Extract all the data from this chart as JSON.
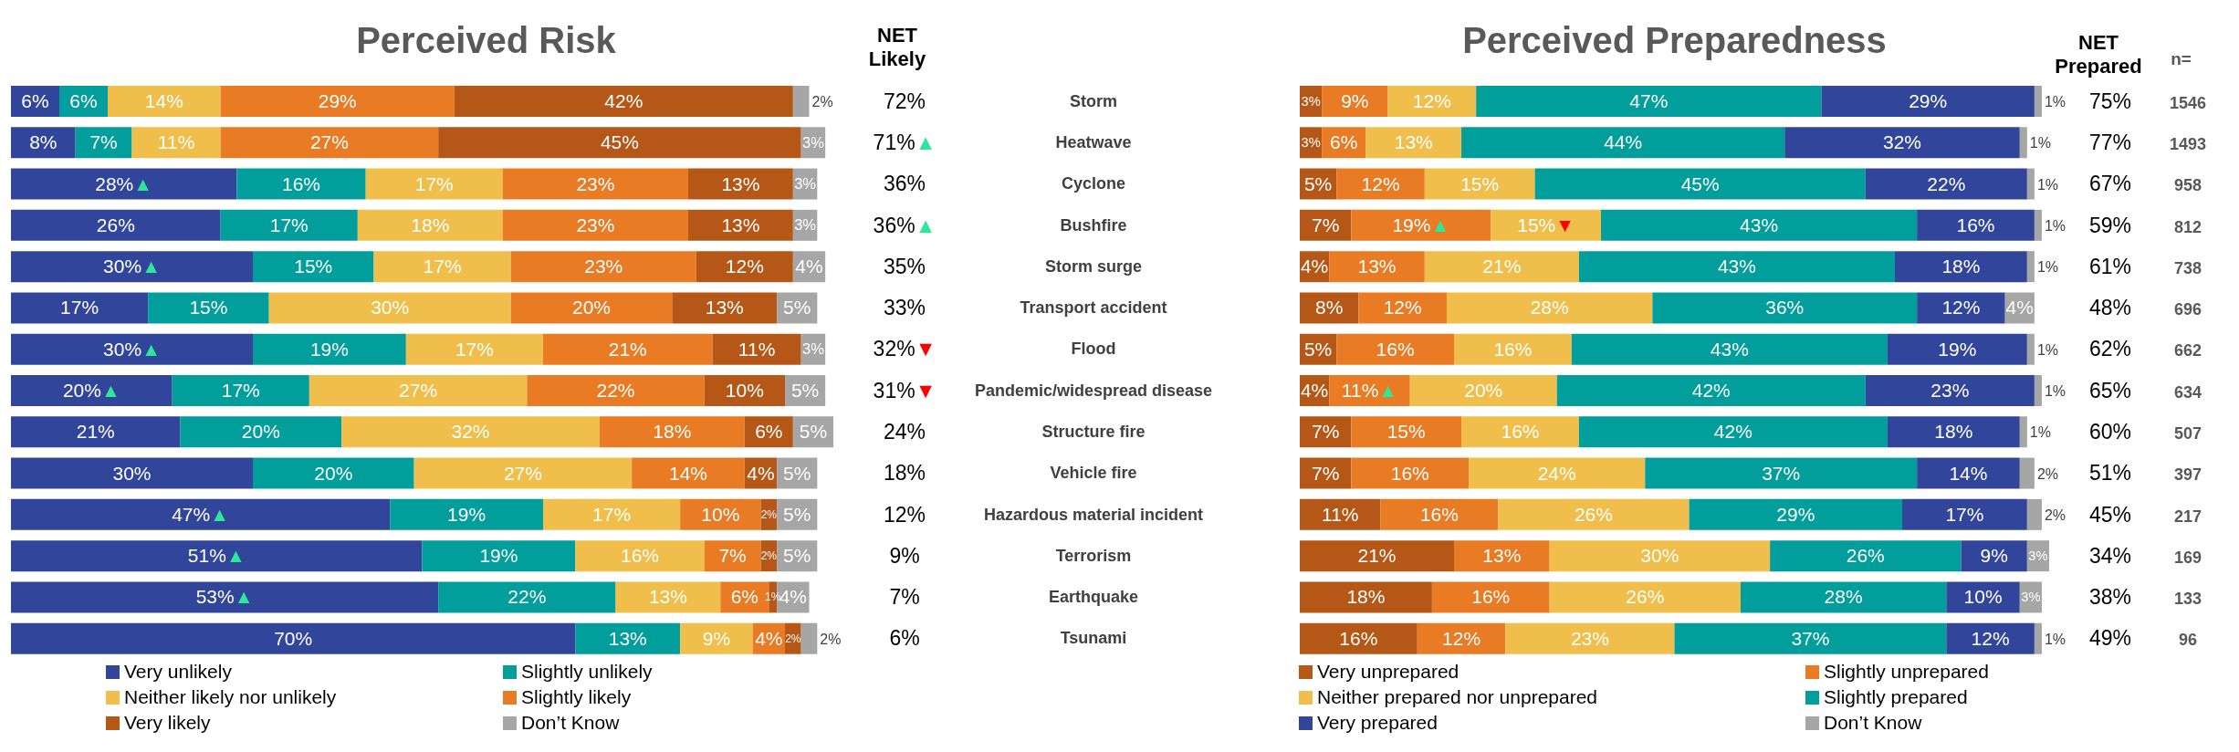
{
  "chart_data": [
    {
      "type": "bar",
      "title": "Perceived Risk",
      "orientation": "horizontal",
      "stacked": true,
      "legend": "bottom",
      "tick_labels": false,
      "categories": [
        null,
        null,
        null,
        null,
        null,
        null,
        null,
        null,
        null,
        null,
        null,
        null,
        null,
        null
      ],
      "series": [
        {
          "name": "Very unlikely",
          "color": "#31469b",
          "values": [
            6,
            8,
            28,
            26,
            30,
            17,
            30,
            20,
            21,
            30,
            47,
            51,
            53,
            70
          ],
          "value_labels": [
            "6%",
            "8%",
            "28%▲",
            "26%",
            "30%▲",
            "17%",
            "30%▲",
            "20%▲",
            "21%",
            "30%",
            "47%▲",
            "51%▲",
            "53%▲",
            "70%"
          ]
        },
        {
          "name": "Slightly unlikely",
          "color": "#029e9b",
          "values": [
            6,
            7,
            16,
            17,
            15,
            15,
            19,
            17,
            20,
            20,
            19,
            19,
            22,
            13
          ],
          "value_labels": [
            "6%",
            "7%",
            "16%",
            "17%",
            "15%",
            "15%",
            "19%",
            "17%",
            "20%",
            "20%",
            "19%",
            "19%",
            "22%",
            "13%"
          ]
        },
        {
          "name": "Neither likely nor unlikely",
          "color": "#f0be4b",
          "values": [
            14,
            11,
            17,
            18,
            17,
            30,
            17,
            27,
            32,
            27,
            17,
            16,
            13,
            9
          ],
          "value_labels": [
            "14%",
            "11%",
            "17%",
            "18%",
            "17%",
            "30%",
            "17%",
            "27%",
            "32%",
            "27%",
            "17%",
            "16%",
            "13%",
            "9%"
          ]
        },
        {
          "name": "Slightly likely",
          "color": "#e87b23",
          "values": [
            29,
            27,
            23,
            23,
            23,
            20,
            21,
            22,
            18,
            14,
            10,
            7,
            6,
            4
          ],
          "value_labels": [
            "29%",
            "27%",
            "23%",
            "23%",
            "23%",
            "20%",
            "21%",
            "22%",
            "18%",
            "14%",
            "10%",
            "7%",
            "6%",
            "4%"
          ]
        },
        {
          "name": "Very likely",
          "color": "#b55716",
          "values": [
            42,
            45,
            13,
            13,
            12,
            13,
            11,
            10,
            6,
            4,
            2,
            2,
            1,
            2
          ],
          "value_labels": [
            "42%",
            "45%",
            "13%",
            "13%",
            "12%",
            "13%",
            "11%",
            "10%",
            "6%",
            "4%",
            "2%",
            "2%",
            "1%",
            "2%"
          ]
        },
        {
          "name": "Don’t Know",
          "color": "#a6a6a6",
          "values": [
            2,
            3,
            3,
            3,
            4,
            5,
            3,
            5,
            5,
            5,
            5,
            5,
            4,
            2
          ],
          "value_labels": [
            "2%",
            "3%",
            "3%",
            "3%",
            "4%",
            "5%",
            "3%",
            "5%",
            "5%",
            "5%",
            "5%",
            "5%",
            "4%",
            "2%"
          ]
        }
      ],
      "annotations": [
        "NET Likely",
        "72%",
        "71%▲",
        "36%",
        "36%▲",
        "35%",
        "33%",
        "32%▼",
        "31%▼",
        "24%",
        "18%",
        "12%",
        "9%",
        "7%",
        "6%"
      ]
    },
    {
      "type": "bar",
      "title": "Perceived Preparedness",
      "orientation": "horizontal",
      "stacked": true,
      "legend": "bottom",
      "tick_labels": "y",
      "categories": [
        "Storm",
        "Heatwave",
        "Cyclone",
        "Bushfire",
        "Storm surge",
        "Transport accident",
        "Flood",
        "Pandemic/widespread disease",
        "Structure fire",
        "Vehicle fire",
        "Hazardous material incident",
        "Terrorism",
        "Earthquake",
        "Tsunami"
      ],
      "series": [
        {
          "name": "Very unprepared",
          "color": "#b55716",
          "values": [
            3,
            3,
            5,
            7,
            4,
            8,
            5,
            4,
            7,
            7,
            11,
            21,
            18,
            16
          ],
          "value_labels": [
            "3%",
            "3%",
            "5%",
            "7%",
            "4%",
            "8%",
            "5%",
            "4%",
            "7%",
            "7%",
            "11%",
            "21%",
            "18%",
            "16%"
          ]
        },
        {
          "name": "Slightly unprepared",
          "color": "#e87b23",
          "values": [
            9,
            6,
            12,
            19,
            13,
            12,
            16,
            11,
            15,
            16,
            16,
            13,
            16,
            12
          ],
          "value_labels": [
            "9%",
            "6%",
            "12%",
            "19%▲",
            "13%",
            "12%",
            "16%",
            "11%▲",
            "15%",
            "16%",
            "16%",
            "13%",
            "16%",
            "12%"
          ]
        },
        {
          "name": "Neither prepared nor unprepared",
          "color": "#f0be4b",
          "values": [
            12,
            13,
            15,
            15,
            21,
            28,
            16,
            20,
            16,
            24,
            26,
            30,
            26,
            23
          ],
          "value_labels": [
            "12%",
            "13%",
            "15%",
            "15%▼",
            "21%",
            "28%",
            "16%",
            "20%",
            "16%",
            "24%",
            "26%",
            "30%",
            "26%",
            "23%"
          ]
        },
        {
          "name": "Slightly prepared",
          "color": "#029e9b",
          "values": [
            47,
            44,
            45,
            43,
            43,
            36,
            43,
            42,
            42,
            37,
            29,
            26,
            28,
            37
          ],
          "value_labels": [
            "47%",
            "44%",
            "45%",
            "43%",
            "43%",
            "36%",
            "43%",
            "42%",
            "42%",
            "37%",
            "29%",
            "26%",
            "28%",
            "37%"
          ]
        },
        {
          "name": "Very prepared",
          "color": "#31469b",
          "values": [
            29,
            32,
            22,
            16,
            18,
            12,
            19,
            23,
            18,
            14,
            17,
            9,
            10,
            12
          ],
          "value_labels": [
            "29%",
            "32%",
            "22%",
            "16%",
            "18%",
            "12%",
            "19%",
            "23%",
            "18%",
            "14%",
            "17%",
            "9%",
            "10%",
            "12%"
          ]
        },
        {
          "name": "Don’t Know",
          "color": "#a6a6a6",
          "values": [
            1,
            1,
            1,
            1,
            1,
            4,
            1,
            1,
            1,
            2,
            2,
            3,
            3,
            1
          ],
          "value_labels": [
            "1%",
            "1%",
            "1%",
            "1%",
            "1%",
            "4%",
            "1%",
            "1%",
            "1%",
            "2%",
            "2%",
            "3%",
            "3%",
            "1%"
          ]
        }
      ],
      "annotations": [
        "NET Prepared",
        "75%",
        "77%",
        "67%",
        "59%",
        "61%",
        "48%",
        "62%",
        "65%",
        "60%",
        "51%",
        "45%",
        "34%",
        "38%",
        "49%",
        "n=",
        "1546",
        "1493",
        "958",
        "812",
        "738",
        "696",
        "662",
        "634",
        "507",
        "397",
        "217",
        "169",
        "133",
        "96"
      ]
    }
  ]
}
